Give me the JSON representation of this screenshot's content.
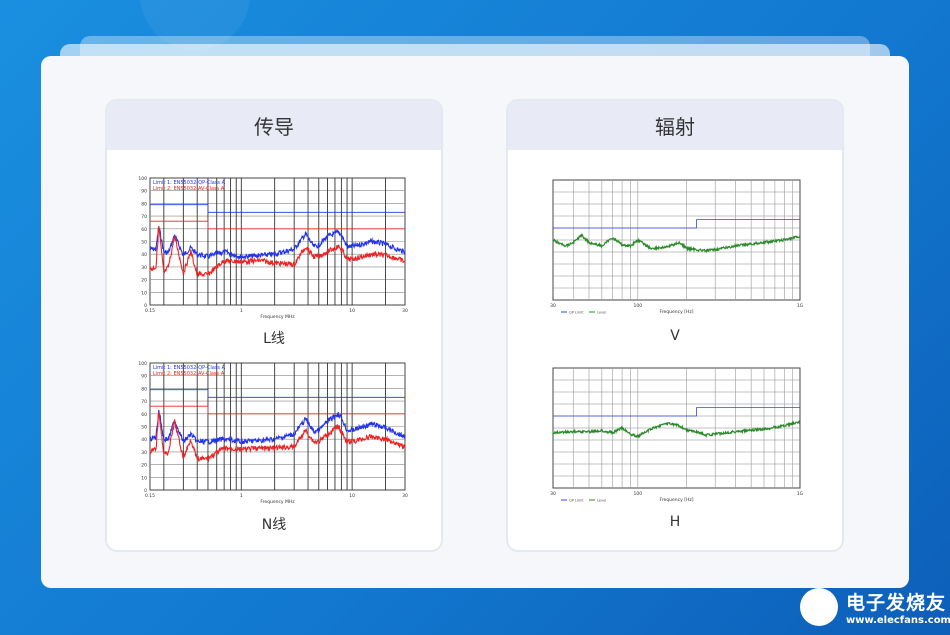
{
  "panels": [
    {
      "title": "传导",
      "charts": [
        {
          "label": "L线"
        },
        {
          "label": "N线"
        }
      ]
    },
    {
      "title": "辐射",
      "charts": [
        {
          "label": "V"
        },
        {
          "label": "H"
        }
      ]
    }
  ],
  "logo": {
    "name": "电子发烧友",
    "url_text": "www.elecfans.com"
  },
  "colors": {
    "background": "#1a8fe0",
    "limit1": "#2233ee",
    "limit2": "#ee2222",
    "trace_green": "#2a8a2a"
  },
  "chart_data": [
    {
      "id": "L",
      "type": "line",
      "xscale": "log",
      "xlim": [
        0.15,
        30
      ],
      "ylim": [
        0,
        100
      ],
      "xticks": [
        "0.15",
        "1",
        "10",
        "30"
      ],
      "yticks": [
        "0",
        "10",
        "20",
        "30",
        "40",
        "50",
        "60",
        "70",
        "80",
        "90",
        "100"
      ],
      "xlabel": "Frequency MHz",
      "grid": true,
      "legend": "top-left",
      "series": [
        {
          "name": "Limit 1: EN55032-QP-Class A",
          "color": "#2233ee",
          "x": [
            0.15,
            0.5,
            0.5,
            30
          ],
          "y": [
            79,
            79,
            73,
            73
          ]
        },
        {
          "name": "Limit 2: EN55032-AV-Class A",
          "color": "#ee2222",
          "x": [
            0.15,
            0.5,
            0.5,
            30
          ],
          "y": [
            66,
            66,
            60,
            60
          ]
        },
        {
          "color": "#2233ee",
          "x": [
            0.15,
            0.17,
            0.18,
            0.2,
            0.22,
            0.25,
            0.3,
            0.35,
            0.4,
            0.5,
            0.7,
            1,
            1.5,
            2,
            3,
            3.8,
            4.5,
            5,
            6,
            7,
            7.5,
            8,
            9,
            10,
            15,
            20,
            25,
            30
          ],
          "y": [
            44,
            44,
            62,
            42,
            41,
            55,
            39,
            45,
            40,
            38,
            42,
            38,
            39,
            40,
            44,
            56,
            46,
            47,
            54,
            56,
            58,
            55,
            46,
            46,
            50,
            48,
            44,
            42
          ]
        },
        {
          "color": "#ee2222",
          "x": [
            0.15,
            0.17,
            0.18,
            0.2,
            0.22,
            0.25,
            0.3,
            0.35,
            0.4,
            0.5,
            0.7,
            1,
            1.5,
            2,
            3,
            3.8,
            4.5,
            5,
            6,
            7,
            7.5,
            8,
            9,
            10,
            15,
            20,
            25,
            30
          ],
          "y": [
            28,
            30,
            62,
            25,
            30,
            54,
            25,
            42,
            24,
            24,
            35,
            34,
            35,
            33,
            32,
            46,
            38,
            38,
            42,
            45,
            46,
            44,
            36,
            36,
            40,
            39,
            37,
            34
          ]
        }
      ]
    },
    {
      "id": "N",
      "type": "line",
      "xscale": "log",
      "xlim": [
        0.15,
        30
      ],
      "ylim": [
        0,
        100
      ],
      "xticks": [
        "0.15",
        "1",
        "10",
        "30"
      ],
      "yticks": [
        "0",
        "10",
        "20",
        "30",
        "40",
        "50",
        "60",
        "70",
        "80",
        "90",
        "100"
      ],
      "xlabel": "Frequency MHz",
      "grid": true,
      "legend": "top-left",
      "series": [
        {
          "name": "Limit 1: EN55032-QP-Class A",
          "color": "#2233ee",
          "x": [
            0.15,
            0.5,
            0.5,
            30
          ],
          "y": [
            79,
            79,
            73,
            73
          ]
        },
        {
          "name": "Limit 2: EN55032-AV-Class A",
          "color": "#ee2222",
          "x": [
            0.15,
            0.5,
            0.5,
            30
          ],
          "y": [
            66,
            66,
            60,
            60
          ]
        },
        {
          "color": "#2233ee",
          "x": [
            0.15,
            0.17,
            0.18,
            0.2,
            0.22,
            0.25,
            0.3,
            0.35,
            0.4,
            0.5,
            0.7,
            1,
            1.5,
            2,
            3,
            3.8,
            4.5,
            5,
            6,
            7,
            7.5,
            8,
            9,
            10,
            15,
            20,
            25,
            30
          ],
          "y": [
            40,
            42,
            63,
            40,
            40,
            55,
            38,
            44,
            38,
            38,
            40,
            38,
            39,
            40,
            44,
            56,
            46,
            47,
            54,
            58,
            60,
            57,
            47,
            47,
            52,
            49,
            45,
            42
          ]
        },
        {
          "color": "#ee2222",
          "x": [
            0.15,
            0.17,
            0.18,
            0.2,
            0.22,
            0.25,
            0.3,
            0.35,
            0.4,
            0.5,
            0.7,
            1,
            1.5,
            2,
            3,
            3.8,
            4.5,
            5,
            6,
            7,
            7.5,
            8,
            9,
            10,
            15,
            20,
            25,
            30
          ],
          "y": [
            30,
            32,
            63,
            28,
            30,
            54,
            25,
            40,
            24,
            25,
            33,
            32,
            33,
            33,
            34,
            47,
            38,
            38,
            44,
            48,
            50,
            46,
            38,
            38,
            42,
            40,
            37,
            34
          ]
        }
      ]
    },
    {
      "id": "V",
      "type": "line",
      "xscale": "log",
      "xlim": [
        30,
        1000
      ],
      "ylim": [
        -20,
        80
      ],
      "xticks": [
        "30",
        "100",
        "1G"
      ],
      "xlabel": "Frequency [Hz]",
      "grid": true,
      "legend": "bottom-left",
      "series": [
        {
          "name": "QP Limit",
          "color": "#3344ee",
          "x": [
            30,
            230,
            230,
            1000
          ],
          "y": [
            40,
            40,
            47,
            47
          ]
        },
        {
          "name": "Level",
          "color": "#2a8a2a",
          "x": [
            30,
            33,
            36,
            40,
            45,
            50,
            60,
            70,
            80,
            90,
            100,
            120,
            150,
            180,
            200,
            230,
            260,
            300,
            400,
            600,
            800,
            1000
          ],
          "y": [
            30,
            27,
            25,
            28,
            34,
            28,
            25,
            32,
            26,
            25,
            30,
            23,
            24,
            28,
            23,
            22,
            21,
            22,
            25,
            28,
            30,
            33
          ]
        }
      ]
    },
    {
      "id": "H",
      "type": "line",
      "xscale": "log",
      "xlim": [
        30,
        1000
      ],
      "ylim": [
        -20,
        80
      ],
      "xticks": [
        "30",
        "100",
        "1G"
      ],
      "xlabel": "Frequency [Hz]",
      "grid": true,
      "legend": "bottom-left",
      "series": [
        {
          "name": "QP Limit",
          "color": "#3344ee",
          "x": [
            30,
            230,
            230,
            1000
          ],
          "y": [
            40,
            40,
            47,
            47
          ]
        },
        {
          "name": "Level",
          "color": "#2a8a2a",
          "x": [
            30,
            40,
            50,
            60,
            70,
            80,
            90,
            100,
            120,
            150,
            180,
            200,
            230,
            260,
            300,
            400,
            600,
            800,
            1000
          ],
          "y": [
            26,
            27,
            27,
            28,
            26,
            30,
            25,
            23,
            29,
            34,
            32,
            28,
            27,
            24,
            25,
            27,
            29,
            32,
            35
          ]
        }
      ]
    }
  ]
}
